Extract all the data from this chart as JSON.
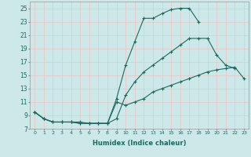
{
  "xlabel": "Humidex (Indice chaleur)",
  "ylabel": "",
  "xlim": [
    -0.5,
    23.5
  ],
  "ylim": [
    7,
    26
  ],
  "xticks": [
    0,
    1,
    2,
    3,
    4,
    5,
    6,
    7,
    8,
    9,
    10,
    11,
    12,
    13,
    14,
    15,
    16,
    17,
    18,
    19,
    20,
    21,
    22,
    23
  ],
  "yticks": [
    7,
    9,
    11,
    13,
    15,
    17,
    19,
    21,
    23,
    25
  ],
  "bg_color": "#cce8e8",
  "line_color": "#1a6b5e",
  "grid_color": "#e8c8c8",
  "curve1_y": [
    9.5,
    8.5,
    8.0,
    8.0,
    8.0,
    8.0,
    7.8,
    7.8,
    7.8,
    11.5,
    16.5,
    20.0,
    23.5,
    23.5,
    24.2,
    24.8,
    25.0,
    25.0,
    23.0,
    null,
    null,
    null,
    null,
    null
  ],
  "curve2_y": [
    9.5,
    8.5,
    8.0,
    8.0,
    8.0,
    7.8,
    7.8,
    7.8,
    7.8,
    8.5,
    12.0,
    14.0,
    15.5,
    16.5,
    17.5,
    18.5,
    19.5,
    20.5,
    20.5,
    20.5,
    18.0,
    16.5,
    16.0,
    null
  ],
  "curve3_y": [
    9.5,
    8.5,
    8.0,
    8.0,
    8.0,
    7.8,
    7.8,
    7.8,
    7.8,
    11.0,
    10.5,
    11.0,
    11.5,
    12.5,
    13.0,
    13.5,
    14.0,
    14.5,
    15.0,
    15.5,
    15.8,
    16.0,
    16.2,
    14.5
  ]
}
